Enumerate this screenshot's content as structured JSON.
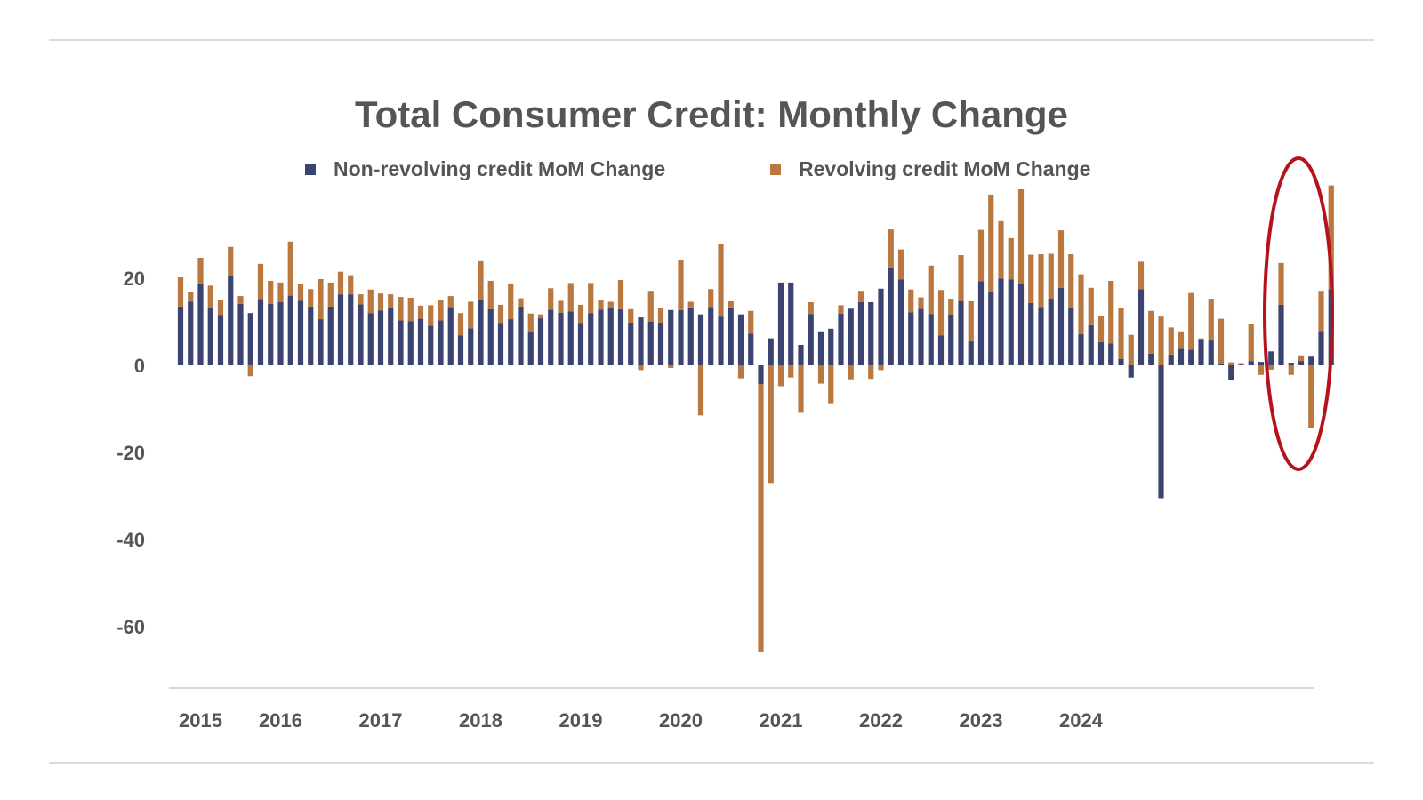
{
  "colors": {
    "non_revolving": "#3b4372",
    "revolving": "#b87840",
    "text": "#555555",
    "rule": "#cfcfcf",
    "highlight": "#b5121b"
  },
  "chart_data": {
    "type": "bar",
    "stacked": true,
    "title": "Total Consumer Credit: Monthly Change",
    "xlabel": "",
    "ylabel": "",
    "ylim": [
      -73,
      43
    ],
    "y_ticks": [
      20,
      0,
      -20,
      -40,
      -60
    ],
    "x_tick_labels": [
      "2015",
      "2016",
      "2017",
      "2018",
      "2019",
      "2020",
      "2021",
      "2022",
      "2023",
      "2024"
    ],
    "x_tick_index": [
      2,
      10,
      20,
      30,
      40,
      50,
      60,
      70,
      80,
      90
    ],
    "legend_position": "top-center",
    "grid": false,
    "highlight": "ellipse around the last 6 months",
    "series": [
      {
        "name": "Non-revolving credit MoM Change",
        "color": "#3b4372",
        "values": [
          13.5,
          14.6,
          18.8,
          13.2,
          11.6,
          20.6,
          14.1,
          12.0,
          15.2,
          14.1,
          14.5,
          16.0,
          14.8,
          13.5,
          10.6,
          13.5,
          16.3,
          16.3,
          14.0,
          12.0,
          12.6,
          13.2,
          10.3,
          10.1,
          10.7,
          9.1,
          10.3,
          13.4,
          6.9,
          8.5,
          15.1,
          12.9,
          9.7,
          10.6,
          13.5,
          7.7,
          10.8,
          12.8,
          12.1,
          12.4,
          9.7,
          12.0,
          12.8,
          13.2,
          12.9,
          9.8,
          11.0,
          10.0,
          9.8,
          12.7,
          12.7,
          13.3,
          11.7,
          13.4,
          11.2,
          13.3,
          11.7,
          7.3,
          -4.3,
          6.2,
          19.0,
          19.0,
          4.7,
          11.8,
          7.8,
          8.4,
          11.9,
          13.0,
          14.5,
          14.5,
          17.6,
          22.5,
          19.7,
          12.2,
          13.0,
          11.8,
          6.9,
          11.7,
          14.7,
          5.5,
          19.3,
          16.8,
          19.9,
          19.7,
          18.6,
          14.3,
          13.4,
          15.3,
          17.8,
          13.1,
          7.2,
          9.2,
          5.3,
          5.0,
          1.5,
          -2.8,
          17.5,
          2.7,
          -30.5,
          2.5,
          3.8,
          3.6,
          6.0,
          5.7,
          0.4,
          -3.4,
          0.1,
          1.0,
          0.8,
          3.2,
          13.9,
          0.6,
          1.0,
          2.0,
          7.9,
          17.5
        ]
      },
      {
        "name": "Revolving credit MoM Change",
        "color": "#b87840",
        "values": [
          6.7,
          2.2,
          5.9,
          5.1,
          3.4,
          6.6,
          1.8,
          -2.5,
          8.1,
          5.3,
          4.5,
          12.4,
          3.9,
          4.0,
          9.2,
          5.5,
          5.2,
          4.4,
          2.3,
          5.4,
          3.9,
          3.1,
          5.4,
          5.4,
          3.0,
          4.7,
          4.6,
          2.5,
          5.1,
          6.1,
          8.8,
          6.5,
          4.2,
          8.2,
          1.9,
          4.2,
          0.9,
          4.9,
          2.7,
          6.5,
          4.2,
          6.9,
          2.2,
          1.4,
          6.7,
          3.1,
          -1.1,
          7.1,
          3.3,
          -0.6,
          11.6,
          1.3,
          -11.5,
          4.1,
          16.6,
          1.4,
          -3.0,
          5.2,
          -61.4,
          -27.0,
          -4.8,
          -2.8,
          -10.9,
          2.7,
          -4.2,
          -8.7,
          1.9,
          -3.2,
          2.6,
          -3.1,
          -1.1,
          8.7,
          6.9,
          5.2,
          2.6,
          11.1,
          10.4,
          3.6,
          10.6,
          9.2,
          11.8,
          22.4,
          13.2,
          9.5,
          21.8,
          11.1,
          12.1,
          10.3,
          13.2,
          12.4,
          13.7,
          8.6,
          6.1,
          14.4,
          11.7,
          7.0,
          6.3,
          9.8,
          11.2,
          6.2,
          4.0,
          13.0,
          0.2,
          9.6,
          10.3,
          0.7,
          0.4,
          8.5,
          -2.2,
          -1.0,
          9.6,
          -2.2,
          1.3,
          -14.4,
          9.2,
          23.8
        ]
      }
    ]
  }
}
